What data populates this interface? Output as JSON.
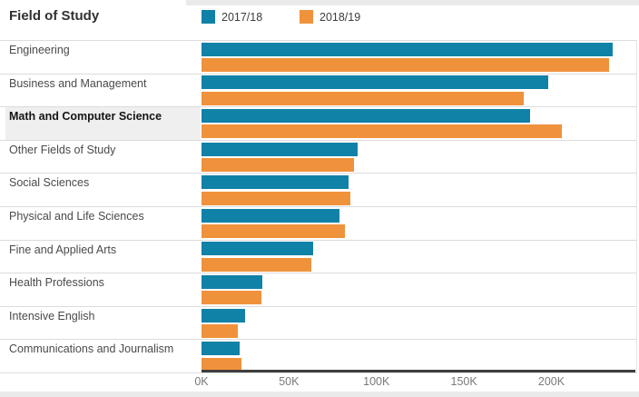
{
  "header": {
    "title": "Field of Study",
    "legend": [
      {
        "label": "2017/18",
        "color": "#1081a7"
      },
      {
        "label": "2018/19",
        "color": "#f0923b"
      }
    ]
  },
  "chart_data": {
    "type": "bar",
    "orientation": "horizontal",
    "title": "Field of Study",
    "xlabel": "",
    "ylabel": "Field of Study",
    "legend_position": "top",
    "grid": "row-separator-lines",
    "categories": [
      "Engineering",
      "Business and Management",
      "Math and Computer Science",
      "Other Fields of Study",
      "Social Sciences",
      "Physical and Life Sciences",
      "Fine and Applied Arts",
      "Health Professions",
      "Intensive English",
      "Communications and Journalism"
    ],
    "series": [
      {
        "name": "2017/18",
        "color": "#1081a7",
        "values": [
          235000,
          198000,
          188000,
          89000,
          84000,
          79000,
          64000,
          35000,
          25000,
          22000
        ]
      },
      {
        "name": "2018/19",
        "color": "#f0923b",
        "values": [
          233000,
          184000,
          206000,
          87000,
          85000,
          82000,
          63000,
          34000,
          21000,
          23000
        ]
      }
    ],
    "x_axis": {
      "tick_labels": [
        "0K",
        "50K",
        "100K",
        "150K",
        "200K"
      ],
      "tick_values": [
        0,
        50000,
        100000,
        150000,
        200000
      ],
      "min": 0,
      "max": 248000,
      "unit": "thousands"
    },
    "highlighted_category": "Math and Computer Science"
  }
}
